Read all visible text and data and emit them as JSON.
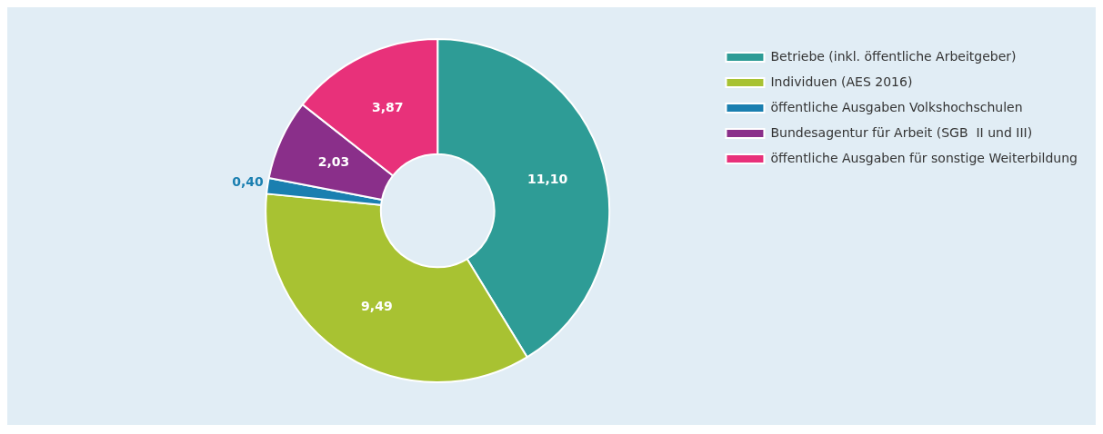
{
  "chart_data": {
    "type": "donut",
    "categories": [
      "Betriebe (inkl. öffentliche Arbeitgeber)",
      "Individuen (AES 2016)",
      "öffentliche Ausgaben Volkshochschulen",
      "Bundesagentur für Arbeit (SGB  II und III)",
      "öffentliche Ausgaben für sonstige Weiterbildung"
    ],
    "values": [
      11.1,
      9.49,
      0.4,
      2.03,
      3.87
    ],
    "value_labels": [
      "11,10",
      "9,49",
      "0,40",
      "2,03",
      "3,87"
    ],
    "colors": [
      "#2e9c96",
      "#a8c232",
      "#1a7fb0",
      "#8a2f8a",
      "#e8317a"
    ],
    "legend": "right"
  }
}
